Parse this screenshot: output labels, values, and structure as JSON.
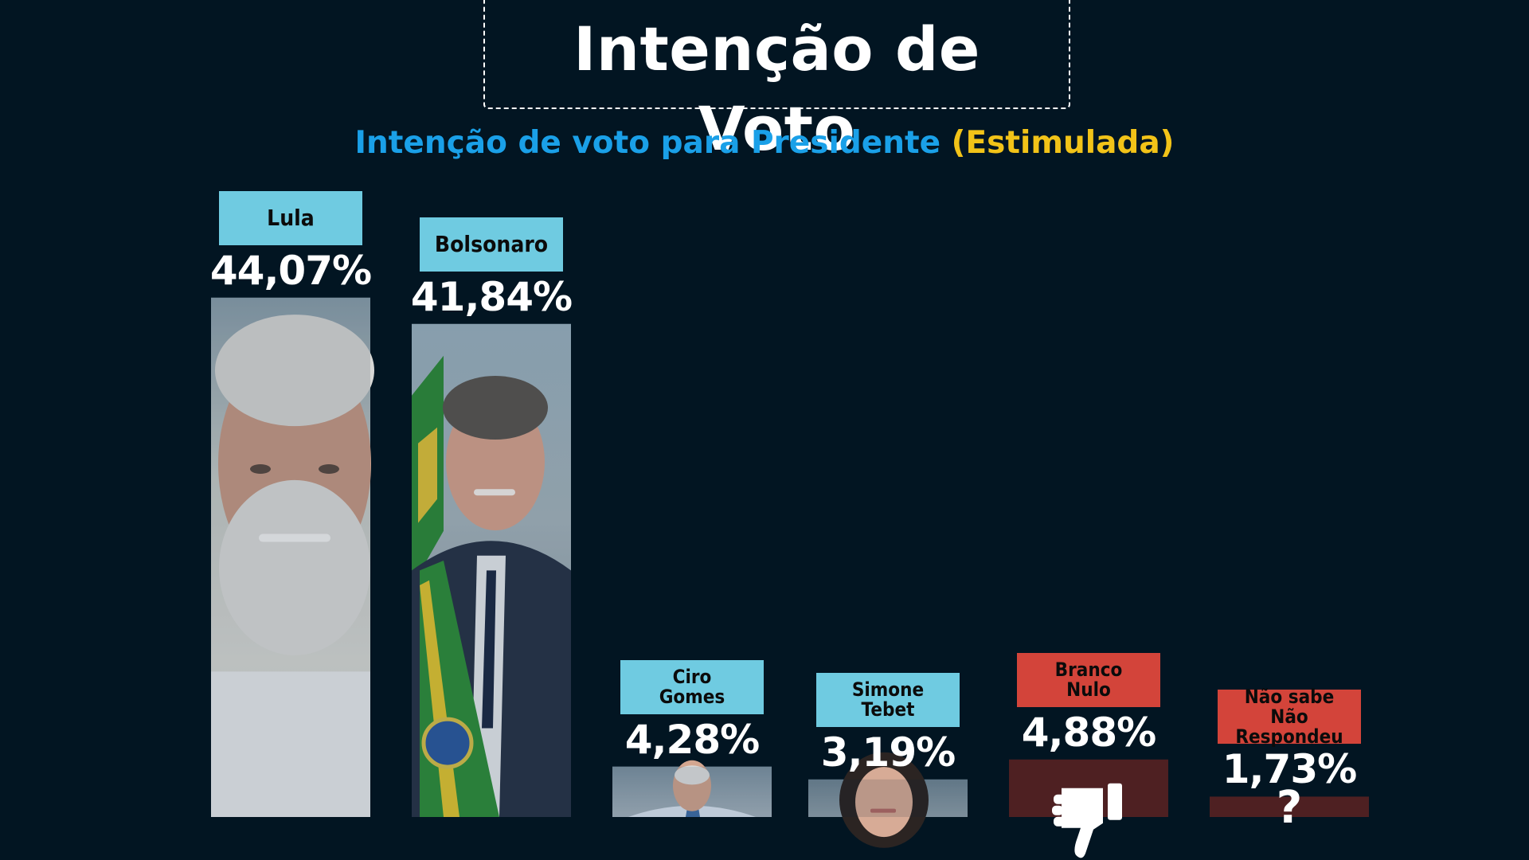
{
  "title": "Intenção de Voto",
  "subtitle": {
    "main": "Intenção de voto para Presidente",
    "qualifier": "(Estimulada)"
  },
  "colors": {
    "background": "#021522",
    "candidate_label": "#6fcbe1",
    "other_label": "#d3443a",
    "other_bar": "#4e2022",
    "subtitle_blue": "#1aa0e8",
    "subtitle_yellow": "#f2c318"
  },
  "chart_data": {
    "type": "bar",
    "title": "Intenção de Voto",
    "subtitle": "Intenção de voto para Presidente (Estimulada)",
    "categories": [
      "Lula",
      "Bolsonaro",
      "Ciro\nGomes",
      "Simone\nTebet",
      "Branco\nNulo",
      "Não sabe\nNão Respondeu"
    ],
    "values": [
      44.07,
      41.84,
      4.28,
      3.19,
      4.88,
      1.73
    ],
    "value_labels": [
      "44,07%",
      "41,84%",
      "4,28%",
      "3,19%",
      "4,88%",
      "1,73%"
    ],
    "kinds": [
      "candidate",
      "candidate",
      "candidate",
      "candidate",
      "other",
      "other"
    ],
    "bar_icons": [
      "lula-photo",
      "bolsonaro-photo",
      "ciro-gomes-photo",
      "simone-tebet-photo",
      "thumbs-down-icon",
      "question-mark-icon"
    ],
    "question_glyph": "?",
    "xlabel": "",
    "ylabel": "",
    "grid": false,
    "legend": "none"
  }
}
